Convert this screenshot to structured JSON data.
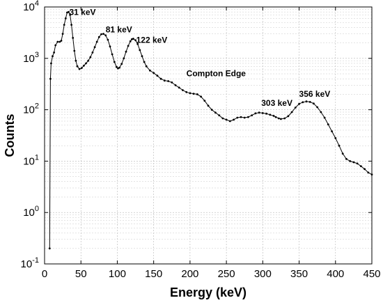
{
  "chart_data": {
    "type": "line",
    "title": "",
    "xlabel": "Energy (keV)",
    "ylabel": "Counts",
    "xlim": [
      0,
      450
    ],
    "ylim": [
      0.1,
      10000
    ],
    "yscale": "log",
    "grid": true,
    "x_ticks": [
      {
        "value": 0,
        "label": "0"
      },
      {
        "value": 50,
        "label": "50"
      },
      {
        "value": 100,
        "label": "100"
      },
      {
        "value": 150,
        "label": "150"
      },
      {
        "value": 200,
        "label": "200"
      },
      {
        "value": 250,
        "label": "250"
      },
      {
        "value": 300,
        "label": "300"
      },
      {
        "value": 350,
        "label": "350"
      },
      {
        "value": 400,
        "label": "400"
      },
      {
        "value": 450,
        "label": "450"
      }
    ],
    "y_ticks": [
      {
        "value": 0.1,
        "base": "10",
        "exp": "-1"
      },
      {
        "value": 1,
        "base": "10",
        "exp": "0"
      },
      {
        "value": 10,
        "base": "10",
        "exp": "1"
      },
      {
        "value": 100,
        "base": "10",
        "exp": "2"
      },
      {
        "value": 1000,
        "base": "10",
        "exp": "3"
      },
      {
        "value": 10000,
        "base": "10",
        "exp": "4"
      }
    ],
    "annotations": [
      {
        "text": "31 keV",
        "x": 34,
        "y": 7000
      },
      {
        "text": "81 keV",
        "x": 84,
        "y": 3200
      },
      {
        "text": "122 keV",
        "x": 126,
        "y": 2000
      },
      {
        "text": "Compton Edge",
        "x": 195,
        "y": 450
      },
      {
        "text": "303 keV",
        "x": 298,
        "y": 120
      },
      {
        "text": "356 keV",
        "x": 350,
        "y": 180
      }
    ],
    "series": [
      {
        "points": [
          [
            7,
            0.2
          ],
          [
            8,
            400
          ],
          [
            9,
            800
          ],
          [
            11,
            1100
          ],
          [
            13,
            1300
          ],
          [
            15,
            1800
          ],
          [
            18,
            2100
          ],
          [
            21,
            2100
          ],
          [
            23,
            2200
          ],
          [
            25,
            3000
          ],
          [
            27,
            4500
          ],
          [
            29,
            6000
          ],
          [
            31,
            7800
          ],
          [
            33,
            8000
          ],
          [
            35,
            7000
          ],
          [
            37,
            4500
          ],
          [
            39,
            2500
          ],
          [
            41,
            1400
          ],
          [
            43,
            900
          ],
          [
            45,
            700
          ],
          [
            48,
            620
          ],
          [
            51,
            650
          ],
          [
            54,
            720
          ],
          [
            57,
            800
          ],
          [
            60,
            900
          ],
          [
            63,
            1050
          ],
          [
            66,
            1300
          ],
          [
            69,
            1650
          ],
          [
            72,
            2100
          ],
          [
            75,
            2600
          ],
          [
            78,
            2950
          ],
          [
            81,
            3000
          ],
          [
            84,
            2800
          ],
          [
            87,
            2300
          ],
          [
            90,
            1700
          ],
          [
            93,
            1200
          ],
          [
            96,
            850
          ],
          [
            99,
            680
          ],
          [
            101,
            640
          ],
          [
            103,
            660
          ],
          [
            106,
            780
          ],
          [
            109,
            1000
          ],
          [
            112,
            1350
          ],
          [
            115,
            1750
          ],
          [
            118,
            2150
          ],
          [
            120,
            2350
          ],
          [
            122,
            2400
          ],
          [
            125,
            2250
          ],
          [
            128,
            1900
          ],
          [
            131,
            1450
          ],
          [
            134,
            1100
          ],
          [
            137,
            850
          ],
          [
            140,
            700
          ],
          [
            145,
            580
          ],
          [
            150,
            520
          ],
          [
            155,
            460
          ],
          [
            160,
            400
          ],
          [
            165,
            370
          ],
          [
            170,
            360
          ],
          [
            175,
            340
          ],
          [
            180,
            300
          ],
          [
            185,
            270
          ],
          [
            190,
            240
          ],
          [
            195,
            220
          ],
          [
            200,
            210
          ],
          [
            205,
            205
          ],
          [
            210,
            200
          ],
          [
            215,
            180
          ],
          [
            220,
            150
          ],
          [
            225,
            120
          ],
          [
            230,
            100
          ],
          [
            235,
            88
          ],
          [
            240,
            78
          ],
          [
            245,
            68
          ],
          [
            250,
            64
          ],
          [
            255,
            60
          ],
          [
            260,
            64
          ],
          [
            265,
            70
          ],
          [
            270,
            72
          ],
          [
            275,
            70
          ],
          [
            280,
            72
          ],
          [
            285,
            78
          ],
          [
            290,
            85
          ],
          [
            295,
            88
          ],
          [
            300,
            86
          ],
          [
            305,
            84
          ],
          [
            310,
            80
          ],
          [
            315,
            76
          ],
          [
            318,
            72
          ],
          [
            322,
            68
          ],
          [
            325,
            66
          ],
          [
            330,
            68
          ],
          [
            335,
            75
          ],
          [
            340,
            90
          ],
          [
            345,
            110
          ],
          [
            350,
            130
          ],
          [
            355,
            140
          ],
          [
            360,
            145
          ],
          [
            365,
            142
          ],
          [
            370,
            132
          ],
          [
            375,
            112
          ],
          [
            380,
            90
          ],
          [
            385,
            70
          ],
          [
            390,
            52
          ],
          [
            395,
            38
          ],
          [
            400,
            28
          ],
          [
            405,
            20
          ],
          [
            410,
            14
          ],
          [
            415,
            11
          ],
          [
            420,
            10
          ],
          [
            425,
            9.5
          ],
          [
            430,
            9
          ],
          [
            435,
            8
          ],
          [
            440,
            7
          ],
          [
            445,
            6
          ],
          [
            450,
            5.5
          ]
        ]
      }
    ]
  }
}
